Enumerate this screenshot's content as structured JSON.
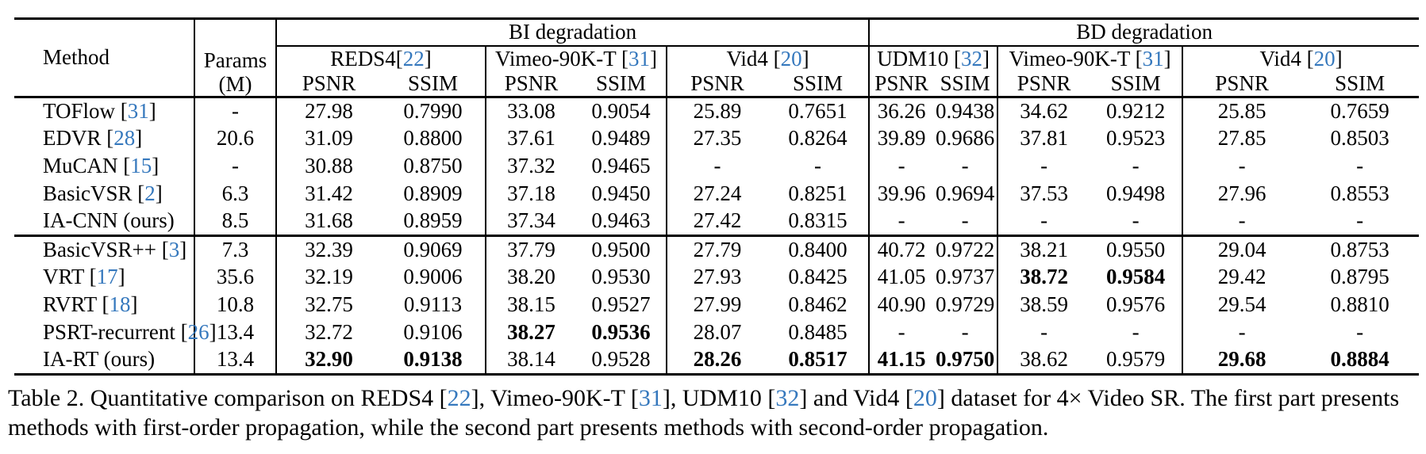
{
  "colors": {
    "cite": "#3578bd",
    "text": "#000000",
    "background": "#ffffff"
  },
  "table": {
    "corner": {
      "method_label": "Method",
      "params_line1": "Params",
      "params_line2": "(M)"
    },
    "groups": [
      {
        "label": "BI degradation"
      },
      {
        "label": "BD degradation"
      }
    ],
    "datasets": [
      {
        "name": "REDS4",
        "cite": "22",
        "space_before_cite": false
      },
      {
        "name": "Vimeo-90K-T",
        "cite": "31",
        "space_before_cite": true
      },
      {
        "name": "Vid4",
        "cite": "20",
        "space_before_cite": true
      },
      {
        "name": "UDM10",
        "cite": "32",
        "space_before_cite": true
      },
      {
        "name": "Vimeo-90K-T",
        "cite": "31",
        "space_before_cite": true
      },
      {
        "name": "Vid4",
        "cite": "20",
        "space_before_cite": true
      }
    ],
    "metrics": [
      "PSNR",
      "SSIM"
    ],
    "rows": [
      {
        "method": "TOFlow",
        "cite": "31",
        "params": "-",
        "vals": [
          "27.98",
          "0.7990",
          "33.08",
          "0.9054",
          "25.89",
          "0.7651",
          "36.26",
          "0.9438",
          "34.62",
          "0.9212",
          "25.85",
          "0.7659"
        ],
        "bold": []
      },
      {
        "method": "EDVR",
        "cite": "28",
        "params": "20.6",
        "vals": [
          "31.09",
          "0.8800",
          "37.61",
          "0.9489",
          "27.35",
          "0.8264",
          "39.89",
          "0.9686",
          "37.81",
          "0.9523",
          "27.85",
          "0.8503"
        ],
        "bold": []
      },
      {
        "method": "MuCAN",
        "cite": "15",
        "params": "-",
        "vals": [
          "30.88",
          "0.8750",
          "37.32",
          "0.9465",
          "-",
          "-",
          "-",
          "-",
          "-",
          "-",
          "-",
          "-"
        ],
        "bold": []
      },
      {
        "method": "BasicVSR",
        "cite": "2",
        "params": "6.3",
        "vals": [
          "31.42",
          "0.8909",
          "37.18",
          "0.9450",
          "27.24",
          "0.8251",
          "39.96",
          "0.9694",
          "37.53",
          "0.9498",
          "27.96",
          "0.8553"
        ],
        "bold": []
      },
      {
        "method": "IA-CNN (ours)",
        "cite": null,
        "params": "8.5",
        "vals": [
          "31.68",
          "0.8959",
          "37.34",
          "0.9463",
          "27.42",
          "0.8315",
          "-",
          "-",
          "-",
          "-",
          "-",
          "-"
        ],
        "bold": [],
        "section_end": true
      },
      {
        "method": "BasicVSR++",
        "cite": "3",
        "params": "7.3",
        "vals": [
          "32.39",
          "0.9069",
          "37.79",
          "0.9500",
          "27.79",
          "0.8400",
          "40.72",
          "0.9722",
          "38.21",
          "0.9550",
          "29.04",
          "0.8753"
        ],
        "bold": []
      },
      {
        "method": "VRT",
        "cite": "17",
        "params": "35.6",
        "vals": [
          "32.19",
          "0.9006",
          "38.20",
          "0.9530",
          "27.93",
          "0.8425",
          "41.05",
          "0.9737",
          "38.72",
          "0.9584",
          "29.42",
          "0.8795"
        ],
        "bold": [
          8,
          9
        ]
      },
      {
        "method": "RVRT",
        "cite": "18",
        "params": "10.8",
        "vals": [
          "32.75",
          "0.9113",
          "38.15",
          "0.9527",
          "27.99",
          "0.8462",
          "40.90",
          "0.9729",
          "38.59",
          "0.9576",
          "29.54",
          "0.8810"
        ],
        "bold": []
      },
      {
        "method": "PSRT-recurrent",
        "cite": "26",
        "params": "13.4",
        "vals": [
          "32.72",
          "0.9106",
          "38.27",
          "0.9536",
          "28.07",
          "0.8485",
          "-",
          "-",
          "-",
          "-",
          "-",
          "-"
        ],
        "bold": [
          2,
          3
        ]
      },
      {
        "method": "IA-RT (ours)",
        "cite": null,
        "params": "13.4",
        "vals": [
          "32.90",
          "0.9138",
          "38.14",
          "0.9528",
          "28.26",
          "0.8517",
          "41.15",
          "0.9750",
          "38.62",
          "0.9579",
          "29.68",
          "0.8884"
        ],
        "bold": [
          0,
          1,
          4,
          5,
          6,
          7,
          10,
          11
        ]
      }
    ]
  },
  "caption": {
    "segments": [
      {
        "text": "Table 2. Quantitative comparison on REDS4 "
      },
      {
        "cite": "22"
      },
      {
        "text": ", Vimeo-90K-T "
      },
      {
        "cite": "31"
      },
      {
        "text": ", UDM10 "
      },
      {
        "cite": "32"
      },
      {
        "text": " and Vid4 "
      },
      {
        "cite": "20"
      },
      {
        "text": " dataset for 4× Video SR. The first part presents methods with first-order propagation, while the second part presents methods with second-order propagation."
      }
    ]
  }
}
